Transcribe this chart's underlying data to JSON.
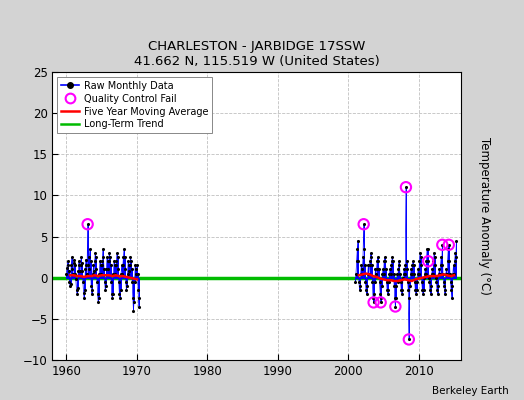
{
  "title": "CHARLESTON - JARBIDGE 17SSW",
  "subtitle": "41.662 N, 115.519 W (United States)",
  "ylabel": "Temperature Anomaly (°C)",
  "credit": "Berkeley Earth",
  "xlim": [
    1958,
    2016
  ],
  "ylim": [
    -10,
    25
  ],
  "yticks": [
    -10,
    -5,
    0,
    5,
    10,
    15,
    20,
    25
  ],
  "xticks": [
    1960,
    1970,
    1980,
    1990,
    2000,
    2010
  ],
  "fig_bg": "#d3d3d3",
  "plot_bg": "#ffffff",
  "raw_color": "#0000ff",
  "raw_dot_color": "#000000",
  "ma_color": "#ff0000",
  "trend_color": "#00bb00",
  "qc_color": "#ff00ff",
  "raw_data_seg1": [
    [
      1960.0,
      0.5
    ],
    [
      1960.08,
      1.2
    ],
    [
      1960.17,
      2.0
    ],
    [
      1960.25,
      1.5
    ],
    [
      1960.33,
      0.8
    ],
    [
      1960.42,
      -0.5
    ],
    [
      1960.5,
      -1.0
    ],
    [
      1960.58,
      -0.8
    ],
    [
      1960.67,
      1.5
    ],
    [
      1960.75,
      2.5
    ],
    [
      1960.83,
      1.0
    ],
    [
      1960.92,
      0.5
    ],
    [
      1961.0,
      1.8
    ],
    [
      1961.08,
      2.2
    ],
    [
      1961.17,
      1.5
    ],
    [
      1961.25,
      0.5
    ],
    [
      1961.33,
      -0.2
    ],
    [
      1961.42,
      -1.5
    ],
    [
      1961.5,
      -2.0
    ],
    [
      1961.58,
      -1.2
    ],
    [
      1961.67,
      0.8
    ],
    [
      1961.75,
      2.0
    ],
    [
      1961.83,
      1.5
    ],
    [
      1961.92,
      0.8
    ],
    [
      1962.0,
      1.5
    ],
    [
      1962.08,
      2.5
    ],
    [
      1962.17,
      1.8
    ],
    [
      1962.25,
      0.8
    ],
    [
      1962.33,
      -0.5
    ],
    [
      1962.42,
      -1.8
    ],
    [
      1962.5,
      -2.5
    ],
    [
      1962.58,
      -1.5
    ],
    [
      1962.67,
      1.0
    ],
    [
      1962.75,
      2.2
    ],
    [
      1962.83,
      1.5
    ],
    [
      1962.92,
      0.5
    ],
    [
      1963.0,
      6.5
    ],
    [
      1963.08,
      1.5
    ],
    [
      1963.17,
      1.0
    ],
    [
      1963.25,
      2.5
    ],
    [
      1963.33,
      3.5
    ],
    [
      1963.42,
      2.0
    ],
    [
      1963.5,
      -1.0
    ],
    [
      1963.58,
      -2.0
    ],
    [
      1963.67,
      -1.5
    ],
    [
      1963.75,
      0.5
    ],
    [
      1963.83,
      1.5
    ],
    [
      1963.92,
      0.8
    ],
    [
      1964.0,
      2.0
    ],
    [
      1964.08,
      3.0
    ],
    [
      1964.17,
      2.5
    ],
    [
      1964.25,
      1.0
    ],
    [
      1964.33,
      -0.5
    ],
    [
      1964.42,
      -2.0
    ],
    [
      1964.5,
      -3.0
    ],
    [
      1964.58,
      -2.5
    ],
    [
      1964.67,
      0.5
    ],
    [
      1964.75,
      2.0
    ],
    [
      1964.83,
      1.5
    ],
    [
      1964.92,
      0.5
    ],
    [
      1965.0,
      1.5
    ],
    [
      1965.08,
      2.0
    ],
    [
      1965.17,
      3.5
    ],
    [
      1965.25,
      2.5
    ],
    [
      1965.33,
      1.0
    ],
    [
      1965.42,
      -0.5
    ],
    [
      1965.5,
      -1.5
    ],
    [
      1965.58,
      -1.0
    ],
    [
      1965.67,
      1.0
    ],
    [
      1965.75,
      2.5
    ],
    [
      1965.83,
      2.0
    ],
    [
      1965.92,
      1.0
    ],
    [
      1966.0,
      2.0
    ],
    [
      1966.08,
      3.0
    ],
    [
      1966.17,
      2.5
    ],
    [
      1966.25,
      1.5
    ],
    [
      1966.33,
      -0.5
    ],
    [
      1966.42,
      -2.0
    ],
    [
      1966.5,
      -2.5
    ],
    [
      1966.58,
      -2.0
    ],
    [
      1966.67,
      0.5
    ],
    [
      1966.75,
      2.0
    ],
    [
      1966.83,
      1.5
    ],
    [
      1966.92,
      0.5
    ],
    [
      1967.0,
      1.5
    ],
    [
      1967.08,
      2.0
    ],
    [
      1967.17,
      3.0
    ],
    [
      1967.25,
      2.5
    ],
    [
      1967.33,
      1.0
    ],
    [
      1967.42,
      -0.5
    ],
    [
      1967.5,
      -2.0
    ],
    [
      1967.58,
      -2.5
    ],
    [
      1967.67,
      -1.5
    ],
    [
      1967.75,
      0.5
    ],
    [
      1967.83,
      1.5
    ],
    [
      1967.92,
      0.5
    ],
    [
      1968.0,
      1.5
    ],
    [
      1968.08,
      2.5
    ],
    [
      1968.17,
      3.5
    ],
    [
      1968.25,
      2.5
    ],
    [
      1968.33,
      1.0
    ],
    [
      1968.42,
      -0.5
    ],
    [
      1968.5,
      -1.5
    ],
    [
      1968.58,
      -1.0
    ],
    [
      1968.67,
      0.5
    ],
    [
      1968.75,
      2.0
    ],
    [
      1968.83,
      1.5
    ],
    [
      1968.92,
      0.8
    ],
    [
      1969.0,
      1.5
    ],
    [
      1969.08,
      2.5
    ],
    [
      1969.17,
      2.0
    ],
    [
      1969.25,
      1.0
    ],
    [
      1969.33,
      -0.5
    ],
    [
      1969.42,
      -2.5
    ],
    [
      1969.5,
      -4.0
    ],
    [
      1969.58,
      -3.0
    ],
    [
      1969.67,
      -0.5
    ],
    [
      1969.75,
      1.5
    ],
    [
      1969.83,
      1.0
    ],
    [
      1969.92,
      0.5
    ],
    [
      1970.0,
      1.5
    ],
    [
      1970.08,
      0.5
    ],
    [
      1970.17,
      -1.5
    ],
    [
      1970.25,
      -3.5
    ],
    [
      1970.33,
      -2.5
    ]
  ],
  "raw_data_seg2": [
    [
      2001.0,
      -0.5
    ],
    [
      2001.08,
      0.5
    ],
    [
      2001.17,
      2.0
    ],
    [
      2001.25,
      3.5
    ],
    [
      2001.33,
      4.5
    ],
    [
      2001.42,
      2.0
    ],
    [
      2001.5,
      -0.5
    ],
    [
      2001.58,
      -1.5
    ],
    [
      2001.67,
      -1.0
    ],
    [
      2001.75,
      0.5
    ],
    [
      2001.83,
      1.5
    ],
    [
      2001.92,
      0.5
    ],
    [
      2002.0,
      1.0
    ],
    [
      2002.08,
      2.5
    ],
    [
      2002.17,
      6.5
    ],
    [
      2002.25,
      3.5
    ],
    [
      2002.33,
      1.5
    ],
    [
      2002.42,
      -0.5
    ],
    [
      2002.5,
      -1.5
    ],
    [
      2002.58,
      -2.0
    ],
    [
      2002.67,
      -1.0
    ],
    [
      2002.75,
      0.5
    ],
    [
      2002.83,
      1.5
    ],
    [
      2002.92,
      0.5
    ],
    [
      2003.0,
      1.5
    ],
    [
      2003.08,
      2.0
    ],
    [
      2003.17,
      3.0
    ],
    [
      2003.25,
      2.5
    ],
    [
      2003.33,
      1.5
    ],
    [
      2003.42,
      -0.5
    ],
    [
      2003.5,
      -2.5
    ],
    [
      2003.58,
      -3.0
    ],
    [
      2003.67,
      -2.0
    ],
    [
      2003.75,
      -0.5
    ],
    [
      2003.83,
      1.0
    ],
    [
      2003.92,
      0.5
    ],
    [
      2004.0,
      1.0
    ],
    [
      2004.08,
      2.0
    ],
    [
      2004.17,
      2.5
    ],
    [
      2004.25,
      2.0
    ],
    [
      2004.33,
      1.0
    ],
    [
      2004.42,
      -0.5
    ],
    [
      2004.5,
      -2.0
    ],
    [
      2004.58,
      -3.0
    ],
    [
      2004.67,
      -2.5
    ],
    [
      2004.75,
      -1.0
    ],
    [
      2004.83,
      0.5
    ],
    [
      2004.92,
      1.0
    ],
    [
      2005.0,
      0.5
    ],
    [
      2005.08,
      2.0
    ],
    [
      2005.17,
      2.5
    ],
    [
      2005.25,
      2.0
    ],
    [
      2005.33,
      1.0
    ],
    [
      2005.42,
      -0.5
    ],
    [
      2005.5,
      -1.5
    ],
    [
      2005.58,
      -2.0
    ],
    [
      2005.67,
      -1.5
    ],
    [
      2005.75,
      -0.5
    ],
    [
      2005.83,
      0.5
    ],
    [
      2005.92,
      1.0
    ],
    [
      2006.0,
      0.5
    ],
    [
      2006.08,
      1.5
    ],
    [
      2006.17,
      2.0
    ],
    [
      2006.25,
      2.5
    ],
    [
      2006.33,
      2.0
    ],
    [
      2006.42,
      0.5
    ],
    [
      2006.5,
      -1.0
    ],
    [
      2006.58,
      -2.5
    ],
    [
      2006.67,
      -3.5
    ],
    [
      2006.75,
      -2.5
    ],
    [
      2006.83,
      -1.0
    ],
    [
      2006.92,
      0.5
    ],
    [
      2007.0,
      -0.5
    ],
    [
      2007.08,
      1.0
    ],
    [
      2007.17,
      2.0
    ],
    [
      2007.25,
      1.5
    ],
    [
      2007.33,
      0.5
    ],
    [
      2007.42,
      -0.5
    ],
    [
      2007.5,
      -1.5
    ],
    [
      2007.58,
      -2.0
    ],
    [
      2007.67,
      -1.5
    ],
    [
      2007.75,
      0.0
    ],
    [
      2007.83,
      0.5
    ],
    [
      2007.92,
      1.0
    ],
    [
      2008.0,
      0.5
    ],
    [
      2008.08,
      1.5
    ],
    [
      2008.17,
      11.0
    ],
    [
      2008.25,
      2.0
    ],
    [
      2008.33,
      1.0
    ],
    [
      2008.42,
      -0.5
    ],
    [
      2008.5,
      -1.5
    ],
    [
      2008.58,
      -7.5
    ],
    [
      2008.67,
      -2.5
    ],
    [
      2008.75,
      -1.0
    ],
    [
      2008.83,
      0.5
    ],
    [
      2008.92,
      1.0
    ],
    [
      2009.0,
      0.5
    ],
    [
      2009.08,
      1.5
    ],
    [
      2009.17,
      2.0
    ],
    [
      2009.25,
      1.5
    ],
    [
      2009.33,
      0.5
    ],
    [
      2009.42,
      -0.5
    ],
    [
      2009.5,
      -1.5
    ],
    [
      2009.58,
      -2.0
    ],
    [
      2009.67,
      -1.5
    ],
    [
      2009.75,
      -0.5
    ],
    [
      2009.83,
      0.5
    ],
    [
      2009.92,
      1.0
    ],
    [
      2010.0,
      0.5
    ],
    [
      2010.08,
      2.0
    ],
    [
      2010.17,
      3.0
    ],
    [
      2010.25,
      2.5
    ],
    [
      2010.33,
      1.5
    ],
    [
      2010.42,
      -0.5
    ],
    [
      2010.5,
      -1.5
    ],
    [
      2010.58,
      -2.0
    ],
    [
      2010.67,
      -1.5
    ],
    [
      2010.75,
      0.0
    ],
    [
      2010.83,
      0.5
    ],
    [
      2010.92,
      1.0
    ],
    [
      2011.0,
      0.5
    ],
    [
      2011.08,
      2.0
    ],
    [
      2011.17,
      3.5
    ],
    [
      2011.25,
      3.5
    ],
    [
      2011.33,
      2.0
    ],
    [
      2011.42,
      0.0
    ],
    [
      2011.5,
      -0.5
    ],
    [
      2011.58,
      -1.5
    ],
    [
      2011.67,
      -2.0
    ],
    [
      2011.75,
      -1.0
    ],
    [
      2011.83,
      0.5
    ],
    [
      2011.92,
      1.0
    ],
    [
      2012.0,
      0.5
    ],
    [
      2012.08,
      2.0
    ],
    [
      2012.17,
      3.0
    ],
    [
      2012.25,
      2.5
    ],
    [
      2012.33,
      1.5
    ],
    [
      2012.42,
      0.0
    ],
    [
      2012.5,
      -0.5
    ],
    [
      2012.58,
      -1.5
    ],
    [
      2012.67,
      -2.0
    ],
    [
      2012.75,
      -1.0
    ],
    [
      2012.83,
      0.5
    ],
    [
      2012.92,
      1.0
    ],
    [
      2013.0,
      0.5
    ],
    [
      2013.08,
      1.5
    ],
    [
      2013.17,
      2.5
    ],
    [
      2013.25,
      1.5
    ],
    [
      2013.33,
      4.0
    ],
    [
      2013.42,
      0.5
    ],
    [
      2013.5,
      -0.5
    ],
    [
      2013.58,
      -1.0
    ],
    [
      2013.67,
      -2.0
    ],
    [
      2013.75,
      -1.5
    ],
    [
      2013.83,
      0.5
    ],
    [
      2013.92,
      1.0
    ],
    [
      2014.0,
      0.5
    ],
    [
      2014.08,
      2.0
    ],
    [
      2014.17,
      3.5
    ],
    [
      2014.25,
      4.0
    ],
    [
      2014.33,
      2.0
    ],
    [
      2014.42,
      0.5
    ],
    [
      2014.5,
      -0.5
    ],
    [
      2014.58,
      -1.5
    ],
    [
      2014.67,
      -2.5
    ],
    [
      2014.75,
      -1.0
    ],
    [
      2014.83,
      0.5
    ],
    [
      2014.92,
      1.5
    ],
    [
      2015.0,
      0.5
    ],
    [
      2015.08,
      2.0
    ],
    [
      2015.17,
      3.0
    ],
    [
      2015.25,
      2.5
    ],
    [
      2015.33,
      4.5
    ]
  ],
  "qc_fails_seg1": [
    [
      1963.0,
      6.5
    ]
  ],
  "qc_fails_seg2": [
    [
      2002.17,
      6.5
    ],
    [
      2003.58,
      -3.0
    ],
    [
      2004.58,
      -3.0
    ],
    [
      2006.67,
      -3.5
    ],
    [
      2008.17,
      11.0
    ],
    [
      2008.58,
      -7.5
    ],
    [
      2011.33,
      2.0
    ],
    [
      2013.33,
      4.0
    ],
    [
      2014.25,
      4.0
    ]
  ],
  "ma_x1": [
    1960.5,
    1961.0,
    1961.5,
    1962.0,
    1962.5,
    1963.0,
    1963.5,
    1964.0,
    1964.5,
    1965.0,
    1965.5,
    1966.0,
    1966.5,
    1967.0,
    1967.5,
    1968.0,
    1968.5,
    1969.0,
    1969.5,
    1970.0
  ],
  "ma_y1": [
    0.3,
    0.3,
    0.2,
    0.2,
    0.1,
    0.2,
    0.2,
    0.3,
    0.2,
    0.3,
    0.3,
    0.3,
    0.2,
    0.3,
    0.2,
    0.2,
    0.1,
    0.0,
    -0.1,
    -0.2
  ],
  "ma_x2": [
    2001.5,
    2002.0,
    2002.5,
    2003.0,
    2003.5,
    2004.0,
    2004.5,
    2005.0,
    2005.5,
    2006.0,
    2006.5,
    2007.0,
    2007.5,
    2008.0,
    2008.5,
    2009.0,
    2009.5,
    2010.0,
    2010.5,
    2011.0,
    2011.5,
    2012.0,
    2012.5,
    2013.0,
    2013.5,
    2014.0,
    2014.5,
    2015.0
  ],
  "ma_y2": [
    0.3,
    0.4,
    0.5,
    0.4,
    0.2,
    0.1,
    -0.1,
    -0.2,
    -0.3,
    -0.3,
    -0.4,
    -0.4,
    -0.3,
    -0.2,
    -0.3,
    -0.4,
    -0.2,
    -0.1,
    0.0,
    0.1,
    0.2,
    0.2,
    0.2,
    0.3,
    0.4,
    0.3,
    0.2,
    0.3
  ],
  "trend_x": [
    1958,
    2016
  ],
  "trend_y": [
    0.0,
    0.0
  ]
}
